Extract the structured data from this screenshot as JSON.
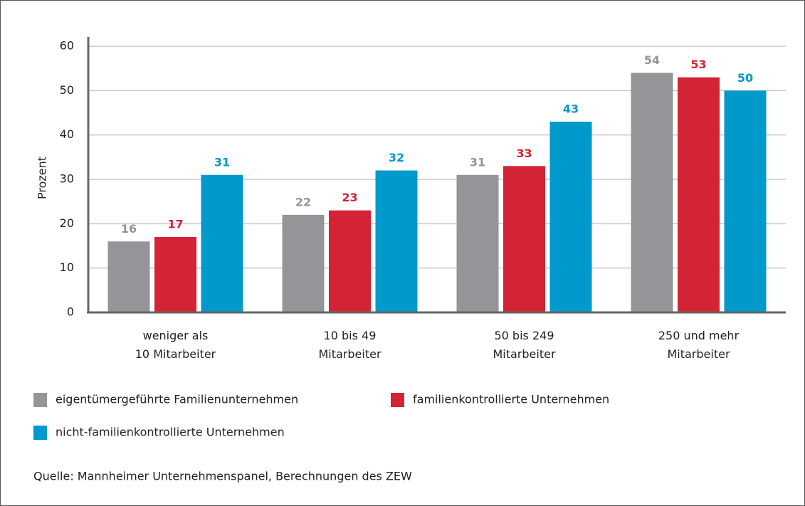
{
  "chart_data": {
    "type": "bar",
    "y_label": "Prozent",
    "categories": [
      "weniger als\n10 Mitarbeiter",
      "10 bis 49\nMitarbeiter",
      "50 bis 249\nMitarbeiter",
      "250 und mehr\nMitarbeiter"
    ],
    "series": [
      {
        "name": "eigentümergeführte Familienunternehmen",
        "color": "#939598",
        "values": [
          16,
          22,
          31,
          54
        ]
      },
      {
        "name": "familienkontrollierte Unternehmen",
        "color": "#d42335",
        "values": [
          17,
          23,
          33,
          53
        ]
      },
      {
        "name": "nicht-familienkontrollierte Unternehmen",
        "color": "#0099cc",
        "values": [
          31,
          32,
          43,
          50
        ]
      }
    ],
    "ylim": [
      0,
      60
    ],
    "yticks": [
      0,
      10,
      20,
      30,
      40,
      50,
      60
    ],
    "grid": true,
    "source": "Quelle: Mannheimer Unternehmenspanel, Berechnungen des ZEW"
  }
}
